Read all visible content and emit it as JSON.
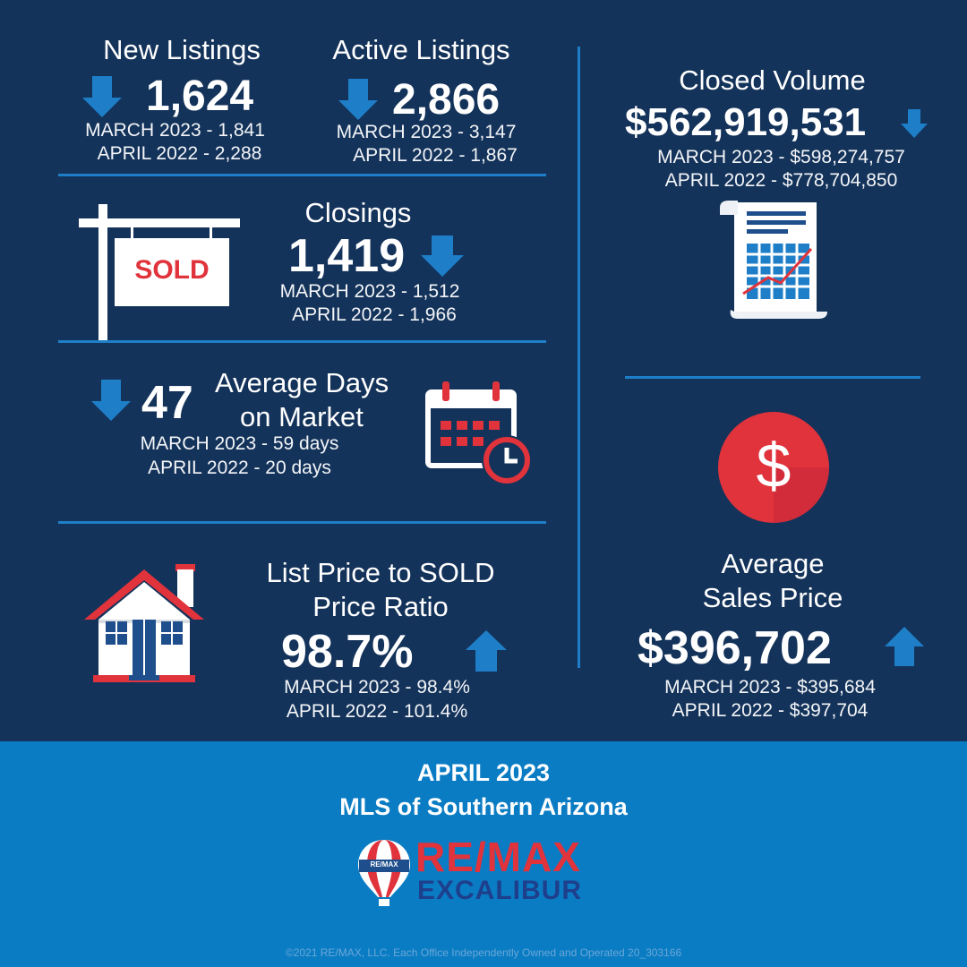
{
  "colors": {
    "background": "#14335a",
    "accent": "#1e7fc8",
    "footer": "#0a7cc4",
    "red": "#e0333c"
  },
  "new_listings": {
    "title": "New Listings",
    "value": "1,624",
    "trend_icon": "arrow-down-icon",
    "prev_month": "MARCH 2023 - 1,841",
    "prev_year": "APRIL 2022 - 2,288"
  },
  "active_listings": {
    "title": "Active Listings",
    "value": "2,866",
    "trend_icon": "arrow-down-icon",
    "prev_month": "MARCH 2023 - 3,147",
    "prev_year": "APRIL 2022 - 1,867"
  },
  "closed_volume": {
    "title": "Closed Volume",
    "value": "$562,919,531",
    "trend_icon": "arrow-down-icon",
    "prev_month": "MARCH 2023 - $598,274,757",
    "prev_year": "APRIL 2022 - $778,704,850"
  },
  "closings": {
    "title": "Closings",
    "value": "1,419",
    "trend_icon": "arrow-down-icon",
    "prev_month": "MARCH 2023 - 1,512",
    "prev_year": "APRIL 2022 - 1,966",
    "sign_text": "SOLD"
  },
  "days_on_market": {
    "title_line1": "Average Days",
    "title_line2": "on Market",
    "value": "47",
    "trend_icon": "arrow-down-icon",
    "prev_month": "MARCH 2023 - 59 days",
    "prev_year": "APRIL 2022 - 20 days"
  },
  "price_ratio": {
    "title_line1": "List Price to SOLD",
    "title_line2": "Price Ratio",
    "value": "98.7%",
    "trend_icon": "arrow-up-icon",
    "prev_month": "MARCH 2023 - 98.4%",
    "prev_year": "APRIL 2022 - 101.4%"
  },
  "avg_sales_price": {
    "title_line1": "Average",
    "title_line2": "Sales Price",
    "value": "$396,702",
    "trend_icon": "arrow-up-icon",
    "prev_month": "MARCH 2023 - $395,684",
    "prev_year": "APRIL 2022 - $397,704",
    "icon_text": "$"
  },
  "footer": {
    "period": "APRIL 2023",
    "region": "MLS of Southern Arizona",
    "brand": "RE/MAX",
    "office": "EXCALIBUR",
    "balloon_text": "RE/MAX",
    "copyright": "©2021 RE/MAX, LLC. Each Office Independently Owned and Operated 20_303166"
  }
}
